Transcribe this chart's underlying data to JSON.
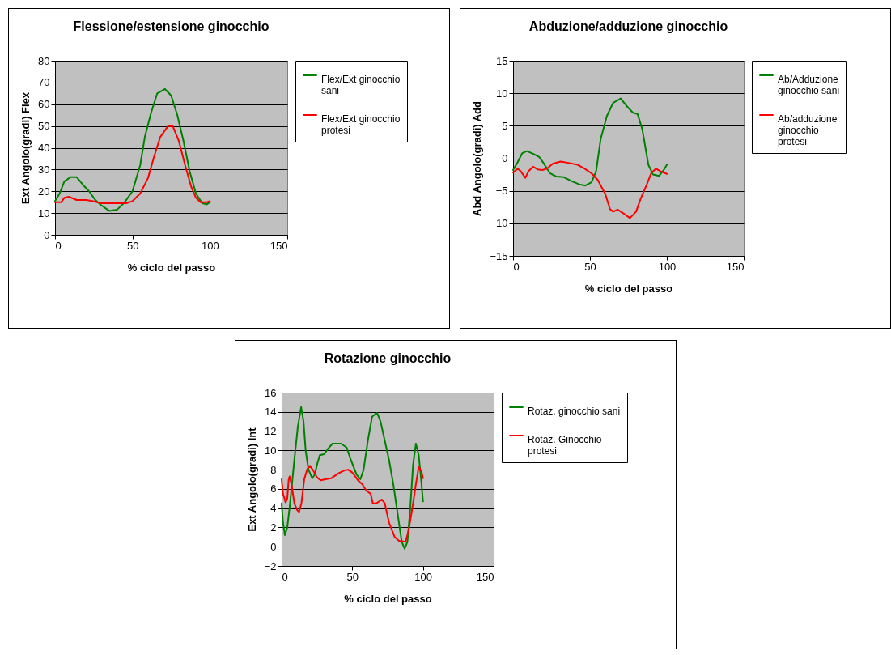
{
  "chart_data": [
    {
      "type": "line",
      "title": "Flessione/estensione ginocchio",
      "xlabel": "% ciclo del passo",
      "ylabel": "Ext  Angolo(gradi)  Flex",
      "xlim": [
        0,
        150
      ],
      "xticks": [
        0,
        50,
        100,
        150
      ],
      "ylim": [
        0,
        80
      ],
      "yticks": [
        0,
        10,
        20,
        30,
        40,
        50,
        60,
        70,
        80
      ],
      "grid": "y",
      "legend": "right",
      "series": [
        {
          "name": "Flex/Ext ginocchio sani",
          "color": "#008000",
          "x": [
            0,
            3,
            6,
            10,
            14,
            18,
            22,
            26,
            30,
            35,
            40,
            45,
            50,
            55,
            58,
            62,
            66,
            71,
            75,
            79,
            83,
            87,
            91,
            95,
            98,
            100
          ],
          "values": [
            15.5,
            19,
            24.5,
            26.5,
            26.5,
            23,
            20,
            16,
            13.5,
            11,
            11.5,
            15,
            20,
            32,
            45,
            56,
            65,
            67,
            64,
            55,
            43,
            29,
            19,
            14.5,
            14,
            15
          ]
        },
        {
          "name": "Flex/Ext ginocchio protesi",
          "color": "#ff0000",
          "x": [
            0,
            4,
            6,
            9,
            14,
            20,
            24,
            30,
            35,
            40,
            46,
            50,
            55,
            60,
            64,
            68,
            73,
            76,
            80,
            84,
            88,
            91,
            94,
            98,
            100
          ],
          "values": [
            15,
            15,
            17,
            17.5,
            16,
            16,
            15.5,
            14.5,
            14.5,
            14.5,
            14.5,
            15.5,
            19,
            26,
            36,
            45,
            50,
            50,
            43,
            32,
            22,
            17,
            15,
            15,
            15.5
          ]
        }
      ]
    },
    {
      "type": "line",
      "title": "Abduzione/adduzione ginocchio",
      "xlabel": "% ciclo del passo",
      "ylabel": "Abd  Angolo(gradi)  Add",
      "xlim": [
        0,
        150
      ],
      "xticks": [
        0,
        50,
        100,
        150
      ],
      "ylim": [
        -15,
        15
      ],
      "yticks": [
        -15,
        -10,
        -5,
        0,
        5,
        10,
        15
      ],
      "grid": "y",
      "legend": "right",
      "series": [
        {
          "name": "Ab/Adduzione ginocchio sani",
          "color": "#008000",
          "x": [
            0,
            3,
            6,
            9,
            13,
            17,
            20,
            24,
            28,
            33,
            38,
            43,
            47,
            51,
            54,
            57,
            61,
            65,
            70,
            74,
            78,
            81,
            84,
            88,
            91,
            95,
            98,
            100
          ],
          "values": [
            -1.8,
            -0.6,
            0.8,
            1.1,
            0.7,
            0.2,
            -0.8,
            -2.3,
            -2.8,
            -2.9,
            -3.5,
            -4,
            -4.2,
            -3.7,
            -2,
            3,
            6.5,
            8.5,
            9.2,
            8,
            7,
            6.8,
            4.5,
            -1,
            -2.5,
            -2.7,
            -1.8,
            -1
          ]
        },
        {
          "name": "Ab/adduzione ginocchio protesi",
          "color": "#ff0000",
          "x": [
            0,
            3,
            5,
            8,
            10,
            13,
            16,
            19,
            22,
            26,
            31,
            36,
            42,
            46,
            51,
            55,
            60,
            63,
            65,
            68,
            72,
            76,
            80,
            83,
            87,
            90,
            93,
            96,
            100
          ],
          "values": [
            -2.2,
            -1.6,
            -2,
            -3,
            -2,
            -1.3,
            -1.7,
            -1.8,
            -1.6,
            -0.8,
            -0.5,
            -0.7,
            -1,
            -1.5,
            -2.3,
            -3.3,
            -5.5,
            -7.8,
            -8.2,
            -7.9,
            -8.5,
            -9.2,
            -8.2,
            -6.2,
            -4,
            -2.2,
            -1.6,
            -2,
            -2.4
          ]
        }
      ]
    },
    {
      "type": "line",
      "title": "Rotazione ginocchio",
      "xlabel": "% ciclo del passo",
      "ylabel": "Ext  Angolo(gradi)  Int",
      "xlim": [
        0,
        150
      ],
      "xticks": [
        0,
        50,
        100,
        150
      ],
      "ylim": [
        -2,
        16
      ],
      "yticks": [
        -2,
        0,
        2,
        4,
        6,
        8,
        10,
        12,
        14,
        16
      ],
      "grid": "y",
      "legend": "right",
      "series": [
        {
          "name": "Rotaz. ginocchio sani",
          "color": "#008000",
          "x": [
            0,
            1,
            2.3,
            4,
            6,
            9,
            11.5,
            13.8,
            15.5,
            17,
            19,
            21.7,
            23.5,
            25,
            27,
            30,
            33,
            36,
            42,
            46,
            49,
            53,
            55.7,
            58,
            61,
            64,
            67.5,
            70,
            73,
            76,
            79,
            82,
            85,
            87,
            89,
            91,
            93,
            95,
            97,
            99,
            100
          ],
          "values": [
            4.5,
            2.5,
            1.2,
            2,
            4.5,
            9,
            12.5,
            14.5,
            13,
            10,
            8,
            7.1,
            7.5,
            8.5,
            9.5,
            9.6,
            10.2,
            10.7,
            10.7,
            10.3,
            9,
            7.5,
            7,
            8,
            11,
            13.5,
            13.9,
            13,
            11,
            9,
            6.5,
            3.5,
            0.5,
            -0.2,
            0.5,
            4,
            8.5,
            10.7,
            9.5,
            6.5,
            4.7
          ]
        },
        {
          "name": "Rotaz. Ginocchio protesi",
          "color": "#ff0000",
          "x": [
            0,
            1,
            2.8,
            4,
            5,
            5.7,
            7,
            9,
            11,
            12.3,
            14,
            16,
            18,
            20,
            22,
            25,
            27.7,
            31,
            35,
            40,
            44,
            47,
            50,
            54,
            57,
            60,
            63,
            64.5,
            67,
            70.8,
            73,
            76,
            80,
            83,
            87.7,
            90,
            93,
            95,
            97,
            99,
            100
          ],
          "values": [
            7,
            5.5,
            4.6,
            5,
            7,
            7.3,
            6.5,
            4.5,
            3.8,
            3.6,
            4.5,
            7,
            8,
            8.4,
            8,
            7.2,
            6.9,
            7,
            7.1,
            7.6,
            7.9,
            8,
            7.7,
            6.9,
            6.5,
            5.8,
            5.5,
            4.5,
            4.5,
            4.9,
            4.5,
            2.5,
            1,
            0.6,
            0.5,
            1.8,
            4.5,
            6.5,
            8.3,
            7.8,
            7.1
          ]
        }
      ]
    }
  ]
}
